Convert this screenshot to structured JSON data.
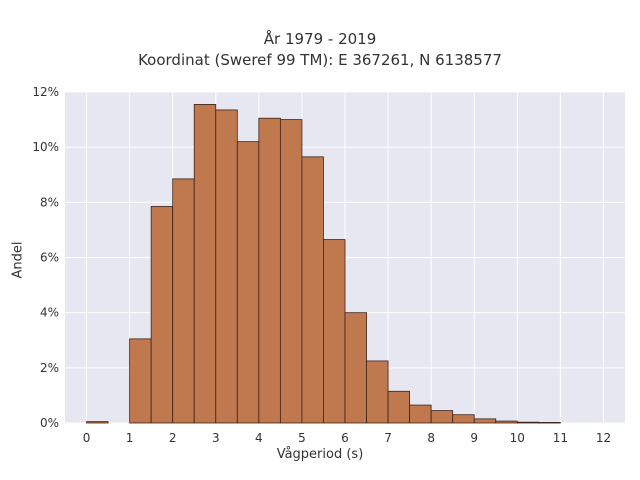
{
  "chart_data": {
    "type": "bar",
    "title": "År 1979 - 2019",
    "subtitle": "Koordinat (Sweref 99 TM): E 367261, N 6138577",
    "xlabel": "Vågperiod (s)",
    "ylabel": "Andel",
    "xlim": [
      -0.5,
      12.5
    ],
    "ylim": [
      0,
      12
    ],
    "x_ticks": [
      "0",
      "1",
      "2",
      "3",
      "4",
      "5",
      "6",
      "7",
      "8",
      "9",
      "10",
      "11",
      "12"
    ],
    "y_ticks": [
      "0%",
      "2%",
      "4%",
      "6%",
      "8%",
      "10%",
      "12%"
    ],
    "bin_width": 0.5,
    "bins": [
      {
        "start": 0.0,
        "value": 0.05
      },
      {
        "start": 0.5,
        "value": 0.0
      },
      {
        "start": 1.0,
        "value": 3.05
      },
      {
        "start": 1.5,
        "value": 7.85
      },
      {
        "start": 2.0,
        "value": 8.85
      },
      {
        "start": 2.5,
        "value": 11.55
      },
      {
        "start": 3.0,
        "value": 11.35
      },
      {
        "start": 3.5,
        "value": 10.2
      },
      {
        "start": 4.0,
        "value": 11.05
      },
      {
        "start": 4.5,
        "value": 11.0
      },
      {
        "start": 5.0,
        "value": 9.65
      },
      {
        "start": 5.5,
        "value": 6.65
      },
      {
        "start": 6.0,
        "value": 4.0
      },
      {
        "start": 6.5,
        "value": 2.25
      },
      {
        "start": 7.0,
        "value": 1.15
      },
      {
        "start": 7.5,
        "value": 0.65
      },
      {
        "start": 8.0,
        "value": 0.45
      },
      {
        "start": 8.5,
        "value": 0.3
      },
      {
        "start": 9.0,
        "value": 0.15
      },
      {
        "start": 9.5,
        "value": 0.07
      },
      {
        "start": 10.0,
        "value": 0.03
      },
      {
        "start": 10.5,
        "value": 0.02
      }
    ],
    "grid": true,
    "colors": {
      "bar_fill": "#c0784f",
      "bar_edge": "#3d2417",
      "plot_bg": "#e6e7f0",
      "grid": "#ffffff"
    }
  }
}
